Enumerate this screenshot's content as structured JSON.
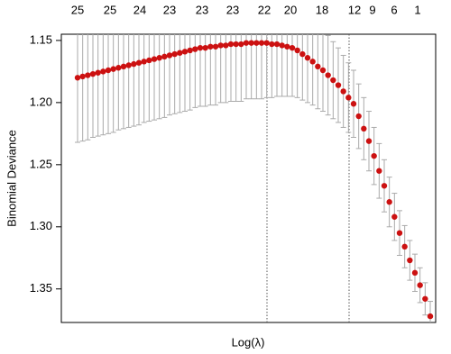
{
  "chart_data": {
    "type": "errorbar",
    "y_label": "Binomial Deviance",
    "x_label": "Log(λ)",
    "top_axis_labels": [
      "25",
      "25",
      "24",
      "23",
      "23",
      "23",
      "22",
      "20",
      "18",
      "12",
      "9",
      "6",
      "1"
    ],
    "ylim": [
      1.377,
      1.145
    ],
    "yticks": [
      1.15,
      {
        "value": 1.2,
        "label": "1.20"
      },
      1.25,
      {
        "value": 1.3,
        "label": "1.30"
      },
      1.35
    ],
    "color": "#cc1111",
    "error_color": "#aaaaaa",
    "values": [
      1.18,
      1.179,
      1.178,
      1.177,
      1.176,
      1.175,
      1.174,
      1.173,
      1.172,
      1.171,
      1.17,
      1.169,
      1.168,
      1.167,
      1.166,
      1.165,
      1.164,
      1.163,
      1.162,
      1.161,
      1.16,
      1.159,
      1.158,
      1.157,
      1.156,
      1.156,
      1.155,
      1.155,
      1.154,
      1.154,
      1.153,
      1.153,
      1.153,
      1.152,
      1.152,
      1.152,
      1.152,
      1.152,
      1.153,
      1.153,
      1.154,
      1.155,
      1.156,
      1.158,
      1.161,
      1.164,
      1.167,
      1.171,
      1.174,
      1.178,
      1.182,
      1.186,
      1.191,
      1.196,
      1.201,
      1.211,
      1.221,
      1.231,
      1.243,
      1.255,
      1.267,
      1.28,
      1.292,
      1.305,
      1.316,
      1.327,
      1.337,
      1.347,
      1.358,
      1.372
    ],
    "errors": [
      0.052,
      0.052,
      0.052,
      0.051,
      0.051,
      0.051,
      0.051,
      0.051,
      0.05,
      0.05,
      0.05,
      0.05,
      0.05,
      0.049,
      0.049,
      0.049,
      0.049,
      0.049,
      0.048,
      0.048,
      0.048,
      0.048,
      0.048,
      0.047,
      0.047,
      0.047,
      0.047,
      0.047,
      0.046,
      0.046,
      0.046,
      0.046,
      0.046,
      0.045,
      0.045,
      0.045,
      0.045,
      0.044,
      0.043,
      0.042,
      0.041,
      0.04,
      0.039,
      0.038,
      0.037,
      0.036,
      0.035,
      0.034,
      0.033,
      0.032,
      0.031,
      0.03,
      0.029,
      0.028,
      0.027,
      0.026,
      0.025,
      0.024,
      0.023,
      0.022,
      0.021,
      0.02,
      0.019,
      0.018,
      0.017,
      0.016,
      0.015,
      0.014,
      0.013,
      0.012
    ]
  }
}
